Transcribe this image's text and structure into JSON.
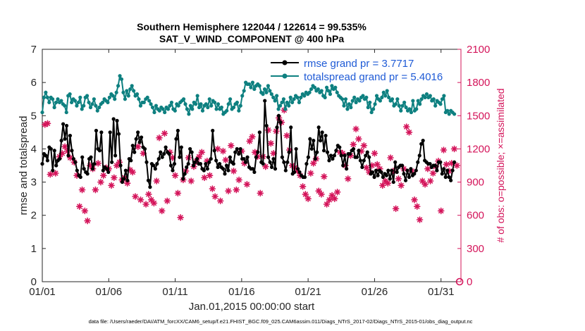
{
  "chart_data": {
    "type": "line",
    "title_line1": "Southern Hemisphere 122044 / 122614 = 99.535%",
    "title_line2": "SAT_V_WIND_COMPONENT @ 400 hPa",
    "xlabel": "Jan.01,2015 00:00:00 start",
    "ylabel_left": "rmse and totalspread",
    "ylabel_right": "# of obs: o=possible; ×=assimilated",
    "footer": "data file: /Users/raeder/DAI/ATM_forcXX/CAM6_setup/f.e21.FHIST_BGC.f09_025.CAM6assim.011/Diags_NTrS_2017-02/Diags_NTrS_2015-01/obs_diag_output.nc",
    "x_tick_labels": [
      "01/01",
      "01/06",
      "01/11",
      "01/16",
      "01/21",
      "01/26",
      "01/31"
    ],
    "x_tick_days": [
      0,
      5,
      10,
      15,
      20,
      25,
      30
    ],
    "xlim": [
      0,
      31.5
    ],
    "ylim_left": [
      0,
      7
    ],
    "yticks_left": [
      "0",
      "1",
      "2",
      "3",
      "4",
      "5",
      "6",
      "7"
    ],
    "ylim_right": [
      0,
      2100
    ],
    "yticks_right": [
      "0",
      "300",
      "600",
      "900",
      "1200",
      "1500",
      "1800",
      "2100"
    ],
    "legend_placement": "top-right",
    "series": [
      {
        "name": "rmse grand pr = 3.7717",
        "color": "#000000",
        "marker": "dot",
        "values": [
          3.55,
          3.85,
          3.8,
          3.65,
          4.05,
          4.0,
          3.35,
          3.95,
          3.5,
          3.65,
          3.7,
          4.25,
          4.75,
          4.3,
          4.7,
          3.8,
          4.4,
          3.95,
          3.7,
          3.6,
          3.35,
          3.2,
          3.15,
          3.75,
          3.4,
          3.3,
          3.25,
          3.7,
          3.75,
          3.4,
          3.55,
          4.55,
          4.0,
          3.95,
          4.5,
          3.35,
          3.45,
          3.4,
          3.3,
          4.5,
          3.6,
          4.9,
          3.8,
          4.85,
          4.45,
          3.5,
          3.0,
          3.1,
          3.35,
          3.05,
          3.7,
          3.65,
          4.1,
          3.9,
          4.3,
          4.5,
          4.2,
          4.35,
          4.05,
          4.0,
          3.6,
          3.05,
          2.85,
          3.55,
          3.5,
          3.4,
          3.55,
          3.7,
          3.9,
          3.75,
          3.85,
          4.05,
          3.9,
          3.85,
          3.5,
          3.35,
          3.55,
          4.3,
          4.55,
          3.75,
          4.05,
          3.1,
          3.25,
          3.45,
          3.55,
          4.0,
          3.9,
          3.5,
          3.6,
          3.7,
          3.55,
          3.55,
          3.4,
          3.35,
          3.55,
          3.4,
          3.6,
          3.7,
          4.55,
          3.95,
          3.65,
          3.45,
          3.55,
          3.45,
          3.4,
          3.25,
          3.5,
          3.35,
          3.75,
          3.6,
          3.55,
          3.9,
          4.0,
          3.85,
          4.0,
          3.7,
          3.7,
          3.6,
          3.75,
          3.45,
          3.4,
          3.4,
          3.3,
          3.75,
          3.9,
          4.5,
          3.6,
          3.55,
          5.45,
          4.7,
          3.75,
          3.6,
          3.45,
          3.7,
          3.4,
          4.65,
          5.0,
          4.8,
          3.75,
          3.6,
          3.35,
          3.6,
          3.9,
          4.65,
          3.25,
          3.3,
          4.0,
          3.4,
          3.3,
          3.2,
          3.15,
          3.15,
          3.55,
          3.75,
          4.3,
          4.0,
          4.25,
          3.7,
          3.9,
          4.65,
          4.25,
          4.5,
          3.95,
          4.4,
          3.9,
          3.65,
          3.8,
          3.7,
          3.8,
          3.95,
          4.1,
          4.05,
          3.8,
          3.5,
          3.8,
          3.4,
          3.85,
          3.85,
          3.95,
          4.0,
          3.75,
          3.75,
          3.95,
          3.65,
          3.45,
          3.65,
          3.8,
          3.9,
          3.75,
          3.25,
          3.3,
          3.15,
          3.35,
          3.2,
          3.35,
          3.3,
          3.15,
          3.25,
          3.2,
          3.35,
          3.1,
          3.35,
          3.0,
          3.6,
          3.3,
          3.45,
          3.5,
          3.5,
          3.25,
          3.05,
          3.35,
          3.15,
          3.4,
          3.2,
          3.25,
          3.35,
          3.6,
          3.8,
          4.15,
          4.25,
          3.65,
          3.6,
          3.55,
          3.55,
          3.45,
          3.5,
          3.5,
          3.35,
          3.6,
          3.6,
          3.25,
          3.4,
          3.15,
          3.35,
          3.15,
          3.05,
          3.35,
          3.6
        ]
      },
      {
        "name": "totalspread grand pr = 5.4016",
        "color": "#0e8080",
        "marker": "dot",
        "values": [
          5.1,
          5.55,
          5.7,
          5.55,
          5.4,
          5.55,
          5.5,
          5.25,
          5.4,
          5.5,
          5.4,
          5.45,
          5.35,
          5.3,
          5.1,
          5.6,
          5.65,
          5.4,
          5.5,
          5.45,
          5.3,
          5.4,
          5.55,
          5.2,
          5.3,
          5.55,
          5.6,
          5.4,
          5.25,
          5.35,
          5.5,
          5.3,
          5.15,
          5.25,
          5.35,
          5.4,
          5.5,
          5.45,
          5.4,
          5.55,
          5.65,
          5.6,
          5.5,
          5.7,
          5.9,
          6.2,
          6.1,
          5.7,
          5.5,
          5.75,
          5.6,
          5.8,
          5.9,
          5.75,
          5.6,
          5.65,
          5.5,
          5.3,
          5.4,
          5.4,
          5.5,
          5.55,
          5.45,
          5.35,
          5.25,
          5.1,
          5.3,
          5.2,
          5.15,
          5.25,
          5.2,
          5.1,
          5.25,
          5.2,
          5.3,
          5.4,
          5.2,
          5.15,
          5.35,
          5.3,
          5.4,
          5.45,
          5.5,
          5.35,
          5.2,
          5.05,
          5.3,
          5.2,
          5.4,
          5.35,
          5.6,
          5.25,
          5.35,
          5.15,
          5.3,
          5.35,
          5.25,
          5.5,
          5.3,
          5.45,
          5.4,
          5.2,
          5.35,
          5.2,
          5.25,
          5.05,
          5.1,
          5.15,
          5.35,
          5.5,
          5.2,
          5.25,
          5.35,
          5.4,
          5.15,
          5.3,
          5.6,
          5.75,
          6.0,
          5.95,
          5.95,
          5.85,
          6.0,
          5.8,
          5.9,
          5.95,
          5.9,
          5.7,
          5.65,
          5.8,
          5.7,
          5.9,
          5.75,
          5.65,
          5.55,
          5.45,
          5.6,
          5.2,
          5.3,
          5.4,
          5.5,
          5.2,
          5.4,
          5.3,
          5.55,
          5.4,
          5.5,
          5.6,
          5.55,
          5.4,
          5.55,
          5.65,
          5.6,
          5.7,
          5.65,
          5.7,
          5.8,
          5.9,
          5.85,
          5.75,
          5.8,
          5.7,
          5.75,
          5.6,
          5.55,
          5.85,
          5.75,
          5.65,
          5.9,
          5.8,
          5.85,
          5.7,
          5.6,
          5.55,
          5.5,
          5.3,
          5.5,
          5.2,
          5.35,
          5.25,
          5.45,
          5.55,
          5.4,
          5.5,
          5.45,
          5.55,
          5.6,
          5.5,
          5.55,
          5.25,
          5.4,
          5.1,
          5.2,
          5.35,
          5.6,
          5.5,
          5.45,
          5.55,
          5.7,
          5.6,
          5.75,
          5.55,
          5.45,
          5.5,
          5.3,
          5.35,
          5.5,
          5.3,
          5.15,
          5.3,
          5.4,
          5.25,
          5.15,
          5.2,
          5.1,
          5.45,
          5.15,
          5.2,
          5.45,
          5.35,
          5.5,
          5.6,
          5.55,
          5.65,
          5.55,
          5.6,
          5.45,
          5.5,
          5.3,
          5.45,
          5.4,
          5.35,
          5.5,
          5.6,
          5.1,
          5.15,
          5.05,
          5.15,
          5.1,
          5.05
        ]
      }
    ],
    "obs_assimilated": {
      "color": "#d4145a",
      "marker": "cross",
      "points": [
        [
          0.2,
          1420
        ],
        [
          0.4,
          1430
        ],
        [
          0.6,
          970
        ],
        [
          1.0,
          980
        ],
        [
          1.3,
          1130
        ],
        [
          1.5,
          1160
        ],
        [
          1.7,
          1220
        ],
        [
          1.9,
          1180
        ],
        [
          2.1,
          1120
        ],
        [
          2.4,
          1080
        ],
        [
          2.6,
          960
        ],
        [
          2.8,
          680
        ],
        [
          3.0,
          830
        ],
        [
          3.2,
          640
        ],
        [
          3.4,
          550
        ],
        [
          3.6,
          1050
        ],
        [
          3.8,
          1020
        ],
        [
          4.0,
          830
        ],
        [
          4.2,
          1070
        ],
        [
          4.4,
          900
        ],
        [
          4.6,
          960
        ],
        [
          4.8,
          1030
        ],
        [
          5.0,
          1020
        ],
        [
          5.2,
          870
        ],
        [
          5.4,
          940
        ],
        [
          5.6,
          1050
        ],
        [
          5.8,
          1080
        ],
        [
          6.0,
          920
        ],
        [
          6.2,
          940
        ],
        [
          6.4,
          890
        ],
        [
          6.6,
          1010
        ],
        [
          6.8,
          990
        ],
        [
          7.0,
          770
        ],
        [
          7.2,
          1220
        ],
        [
          7.4,
          740
        ],
        [
          7.6,
          1160
        ],
        [
          7.8,
          700
        ],
        [
          8.0,
          790
        ],
        [
          8.2,
          740
        ],
        [
          8.4,
          710
        ],
        [
          8.6,
          910
        ],
        [
          8.8,
          1300
        ],
        [
          9.0,
          640
        ],
        [
          9.2,
          1340
        ],
        [
          9.4,
          730
        ],
        [
          9.6,
          1170
        ],
        [
          9.8,
          1120
        ],
        [
          10.0,
          960
        ],
        [
          10.2,
          800
        ],
        [
          10.4,
          580
        ],
        [
          10.6,
          920
        ],
        [
          10.8,
          1000
        ],
        [
          11.0,
          1120
        ],
        [
          11.2,
          910
        ],
        [
          11.4,
          1040
        ],
        [
          11.6,
          1090
        ],
        [
          11.8,
          1130
        ],
        [
          12.0,
          1170
        ],
        [
          12.2,
          940
        ],
        [
          12.4,
          1090
        ],
        [
          12.6,
          960
        ],
        [
          12.8,
          840
        ],
        [
          13.0,
          770
        ],
        [
          13.2,
          1200
        ],
        [
          13.4,
          730
        ],
        [
          13.6,
          1180
        ],
        [
          13.8,
          1100
        ],
        [
          14.0,
          820
        ],
        [
          14.2,
          1230
        ],
        [
          14.4,
          1000
        ],
        [
          14.6,
          830
        ],
        [
          14.8,
          920
        ],
        [
          15.0,
          1180
        ],
        [
          15.2,
          1070
        ],
        [
          15.4,
          880
        ],
        [
          15.6,
          1270
        ],
        [
          15.8,
          1310
        ],
        [
          16.0,
          1170
        ],
        [
          16.2,
          1130
        ],
        [
          16.4,
          800
        ],
        [
          16.6,
          1130
        ],
        [
          16.8,
          1040
        ],
        [
          17.0,
          1370
        ],
        [
          17.2,
          1250
        ],
        [
          17.4,
          1160
        ],
        [
          17.6,
          1360
        ],
        [
          17.8,
          1480
        ],
        [
          18.0,
          1440
        ],
        [
          18.2,
          1550
        ],
        [
          18.4,
          1320
        ],
        [
          18.6,
          1190
        ],
        [
          18.8,
          1050
        ],
        [
          19.0,
          1030
        ],
        [
          19.2,
          1000
        ],
        [
          19.4,
          960
        ],
        [
          19.6,
          860
        ],
        [
          19.8,
          790
        ],
        [
          20.0,
          750
        ],
        [
          20.2,
          980
        ],
        [
          20.4,
          1070
        ],
        [
          20.6,
          1110
        ],
        [
          20.8,
          820
        ],
        [
          21.0,
          790
        ],
        [
          21.2,
          950
        ],
        [
          21.4,
          700
        ],
        [
          21.6,
          740
        ],
        [
          21.8,
          780
        ],
        [
          22.0,
          750
        ],
        [
          22.2,
          810
        ],
        [
          22.4,
          1170
        ],
        [
          22.6,
          1160
        ],
        [
          22.8,
          1050
        ],
        [
          23.0,
          930
        ],
        [
          23.2,
          1140
        ],
        [
          23.4,
          1240
        ],
        [
          23.6,
          1380
        ],
        [
          23.8,
          1290
        ],
        [
          24.0,
          1180
        ],
        [
          24.2,
          1230
        ],
        [
          24.4,
          1030
        ],
        [
          24.6,
          990
        ],
        [
          24.8,
          1050
        ],
        [
          25.0,
          1160
        ],
        [
          25.2,
          1060
        ],
        [
          25.4,
          1020
        ],
        [
          25.6,
          870
        ],
        [
          25.8,
          910
        ],
        [
          26.0,
          890
        ],
        [
          26.2,
          1120
        ],
        [
          26.4,
          1000
        ],
        [
          26.6,
          660
        ],
        [
          26.8,
          930
        ],
        [
          27.0,
          870
        ],
        [
          27.2,
          1020
        ],
        [
          27.4,
          1400
        ],
        [
          27.6,
          1350
        ],
        [
          27.8,
          1000
        ],
        [
          28.0,
          740
        ],
        [
          28.2,
          680
        ],
        [
          28.4,
          560
        ],
        [
          28.6,
          910
        ],
        [
          28.8,
          880
        ],
        [
          29.0,
          1020
        ],
        [
          29.2,
          910
        ],
        [
          29.4,
          980
        ],
        [
          29.6,
          1040
        ],
        [
          29.8,
          1090
        ],
        [
          30.0,
          640
        ],
        [
          30.2,
          1190
        ],
        [
          30.4,
          1060
        ],
        [
          30.6,
          1000
        ],
        [
          30.8,
          1070
        ],
        [
          31.0,
          1200
        ],
        [
          31.2,
          1050
        ]
      ]
    },
    "obs_possible": {
      "color": "#d4145a",
      "marker": "circle",
      "points": [
        [
          31.4,
          0
        ]
      ]
    }
  }
}
